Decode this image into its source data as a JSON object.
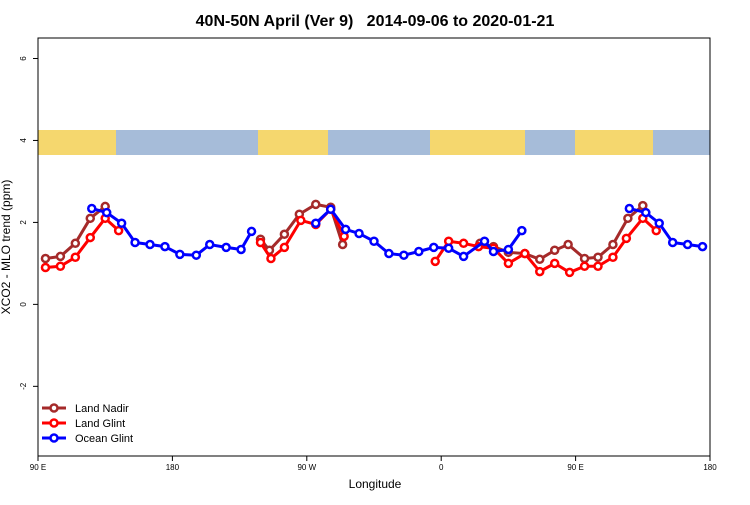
{
  "chart_data": {
    "type": "line",
    "title": "40N-50N April (Ver 9)   2014-09-06 to 2020-01-21",
    "xlabel": "Longitude",
    "ylabel": "XCO2 - MLO trend (ppm)",
    "xlim": [
      90,
      540
    ],
    "ylim": [
      -3.7,
      6.5
    ],
    "xticks": [
      {
        "value": 90,
        "label": "90 E"
      },
      180,
      {
        "value": 270,
        "label": "90 W"
      },
      {
        "value": 360,
        "label": "0"
      },
      {
        "value": 450,
        "label": "90 E"
      },
      {
        "value": 540,
        "label": "180"
      }
    ],
    "yticks": [
      -2,
      0,
      2,
      4,
      6
    ],
    "legend": "bottom-left",
    "series": [
      {
        "name": "Land Nadir",
        "color": "#a52a2a",
        "x": [
          95,
          105,
          115,
          125,
          135,
          null,
          239,
          245,
          255,
          265,
          276,
          286,
          294,
          null,
          386,
          395,
          405,
          416,
          426,
          436,
          445,
          456,
          465,
          475,
          485,
          495
        ],
        "values": [
          1.12,
          1.17,
          1.49,
          2.1,
          2.39,
          null,
          1.59,
          1.32,
          1.71,
          2.2,
          2.44,
          2.37,
          1.46,
          null,
          1.49,
          1.41,
          1.27,
          1.24,
          1.1,
          1.32,
          1.46,
          1.12,
          1.15,
          1.46,
          2.1,
          2.41
        ]
      },
      {
        "name": "Land Glint",
        "color": "#ff0000",
        "x": [
          95,
          105,
          115,
          125,
          135,
          144,
          null,
          239,
          246,
          255,
          266,
          276,
          286,
          295,
          null,
          356,
          365,
          375,
          385,
          395,
          405,
          416,
          426,
          436,
          446,
          456,
          465,
          475,
          484,
          495,
          504
        ],
        "values": [
          0.9,
          0.93,
          1.15,
          1.63,
          2.1,
          1.8,
          null,
          1.51,
          1.12,
          1.39,
          2.05,
          1.95,
          2.32,
          1.66,
          null,
          1.05,
          1.54,
          1.49,
          1.41,
          1.37,
          1.0,
          1.24,
          0.8,
          1.0,
          0.78,
          0.93,
          0.93,
          1.15,
          1.61,
          2.1,
          1.8
        ]
      },
      {
        "name": "Ocean Glint",
        "color": "#0000ff",
        "x": [
          126,
          136,
          146,
          155,
          165,
          175,
          185,
          196,
          205,
          216,
          226,
          233,
          null,
          276,
          286,
          296,
          305,
          315,
          325,
          335,
          345,
          355,
          365,
          375,
          389,
          395,
          405,
          414,
          null,
          486,
          497,
          506,
          515,
          525,
          535
        ],
        "values": [
          2.34,
          2.24,
          1.98,
          1.51,
          1.46,
          1.41,
          1.22,
          1.2,
          1.46,
          1.39,
          1.34,
          1.78,
          null,
          1.98,
          2.32,
          1.83,
          1.73,
          1.54,
          1.24,
          1.2,
          1.29,
          1.39,
          1.37,
          1.17,
          1.54,
          1.29,
          1.34,
          1.8,
          null,
          2.34,
          2.24,
          1.98,
          1.51,
          1.46,
          1.41
        ]
      }
    ]
  }
}
